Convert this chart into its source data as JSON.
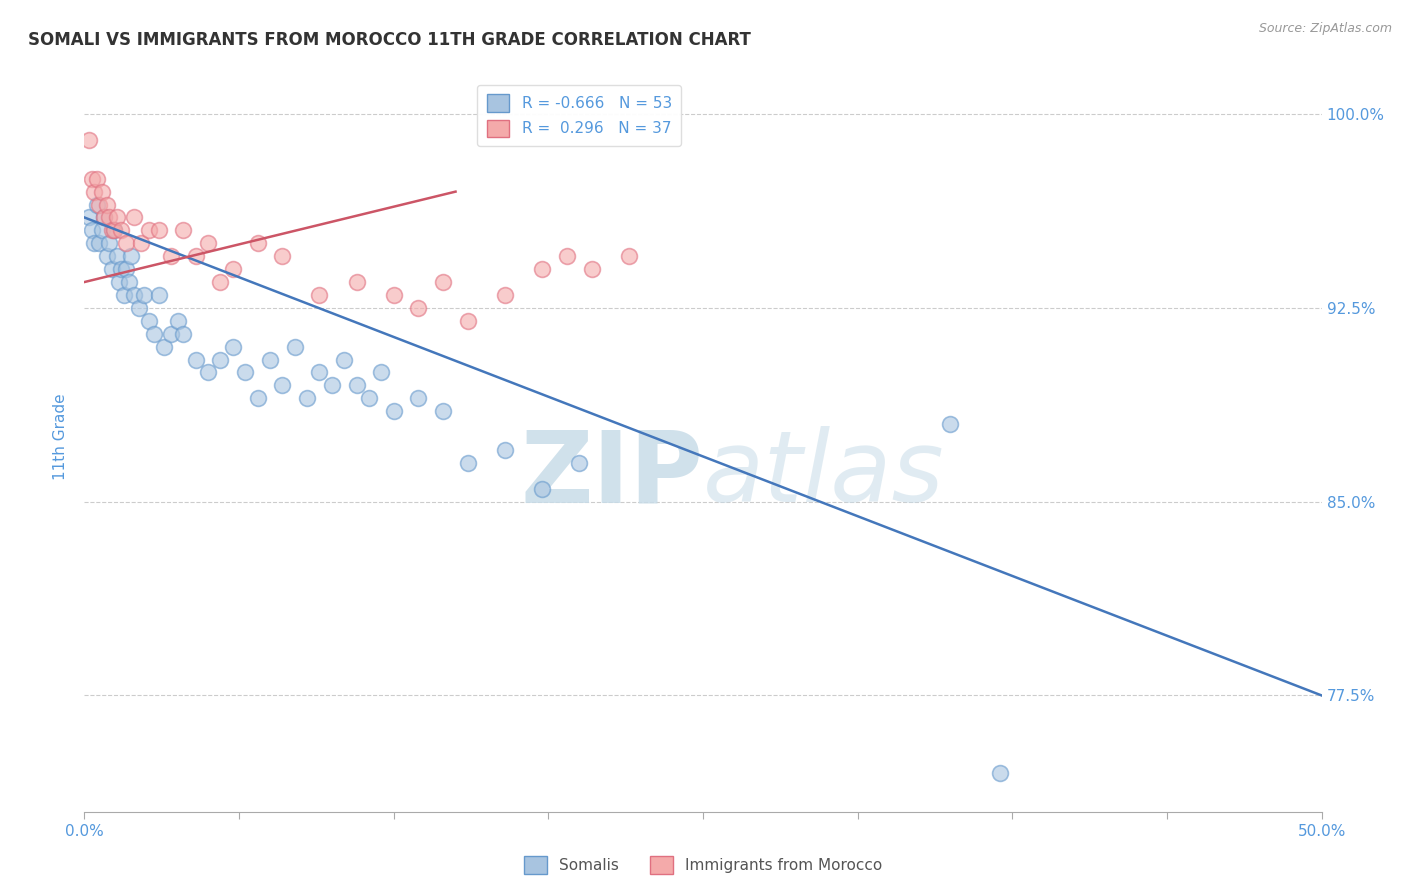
{
  "title": "SOMALI VS IMMIGRANTS FROM MOROCCO 11TH GRADE CORRELATION CHART",
  "source": "Source: ZipAtlas.com",
  "ylabel": "11th Grade",
  "ylabel_right_ticks": [
    100.0,
    92.5,
    85.0,
    77.5
  ],
  "ylabel_right_labels": [
    "100.0%",
    "92.5%",
    "85.0%",
    "77.5%"
  ],
  "xmin": 0.0,
  "xmax": 50.0,
  "ymin": 73.0,
  "ymax": 102.0,
  "legend_blue_label": "R = -0.666   N = 53",
  "legend_pink_label": "R =  0.296   N = 37",
  "somalis_label": "Somalis",
  "morocco_label": "Immigrants from Morocco",
  "blue_color": "#A8C4E0",
  "pink_color": "#F4AAAA",
  "blue_edge_color": "#6699CC",
  "pink_edge_color": "#E07080",
  "blue_line_color": "#4477BB",
  "pink_line_color": "#CC5566",
  "watermark_color": "#C8DCE8",
  "title_color": "#333333",
  "axis_label_color": "#5599DD",
  "tick_color": "#AAAAAA",
  "grid_color": "#CCCCCC",
  "background_color": "#FFFFFF",
  "blue_scatter_x": [
    0.2,
    0.3,
    0.4,
    0.5,
    0.6,
    0.7,
    0.8,
    0.9,
    1.0,
    1.1,
    1.2,
    1.3,
    1.4,
    1.5,
    1.6,
    1.7,
    1.8,
    1.9,
    2.0,
    2.2,
    2.4,
    2.6,
    2.8,
    3.0,
    3.2,
    3.5,
    3.8,
    4.0,
    4.5,
    5.0,
    5.5,
    6.0,
    6.5,
    7.0,
    7.5,
    8.0,
    8.5,
    9.0,
    9.5,
    10.0,
    10.5,
    11.0,
    11.5,
    12.0,
    12.5,
    13.5,
    14.5,
    15.5,
    17.0,
    18.5,
    20.0,
    35.0,
    37.0
  ],
  "blue_scatter_y": [
    96.0,
    95.5,
    95.0,
    96.5,
    95.0,
    95.5,
    96.0,
    94.5,
    95.0,
    94.0,
    95.5,
    94.5,
    93.5,
    94.0,
    93.0,
    94.0,
    93.5,
    94.5,
    93.0,
    92.5,
    93.0,
    92.0,
    91.5,
    93.0,
    91.0,
    91.5,
    92.0,
    91.5,
    90.5,
    90.0,
    90.5,
    91.0,
    90.0,
    89.0,
    90.5,
    89.5,
    91.0,
    89.0,
    90.0,
    89.5,
    90.5,
    89.5,
    89.0,
    90.0,
    88.5,
    89.0,
    88.5,
    86.5,
    87.0,
    85.5,
    86.5,
    88.0,
    74.5
  ],
  "pink_scatter_x": [
    0.2,
    0.3,
    0.4,
    0.5,
    0.6,
    0.7,
    0.8,
    0.9,
    1.0,
    1.1,
    1.2,
    1.3,
    1.5,
    1.7,
    2.0,
    2.3,
    2.6,
    3.0,
    3.5,
    4.0,
    4.5,
    5.0,
    5.5,
    6.0,
    7.0,
    8.0,
    9.5,
    11.0,
    12.5,
    13.5,
    14.5,
    15.5,
    17.0,
    18.5,
    19.5,
    20.5,
    22.0
  ],
  "pink_scatter_y": [
    99.0,
    97.5,
    97.0,
    97.5,
    96.5,
    97.0,
    96.0,
    96.5,
    96.0,
    95.5,
    95.5,
    96.0,
    95.5,
    95.0,
    96.0,
    95.0,
    95.5,
    95.5,
    94.5,
    95.5,
    94.5,
    95.0,
    93.5,
    94.0,
    95.0,
    94.5,
    93.0,
    93.5,
    93.0,
    92.5,
    93.5,
    92.0,
    93.0,
    94.0,
    94.5,
    94.0,
    94.5
  ],
  "blue_trend_x": [
    0.0,
    50.0
  ],
  "blue_trend_y": [
    96.0,
    77.5
  ],
  "pink_trend_x": [
    0.0,
    15.0
  ],
  "pink_trend_y": [
    93.5,
    97.0
  ],
  "xticks": [
    0.0,
    50.0
  ],
  "xticklabels": [
    "0.0%",
    "50.0%"
  ]
}
